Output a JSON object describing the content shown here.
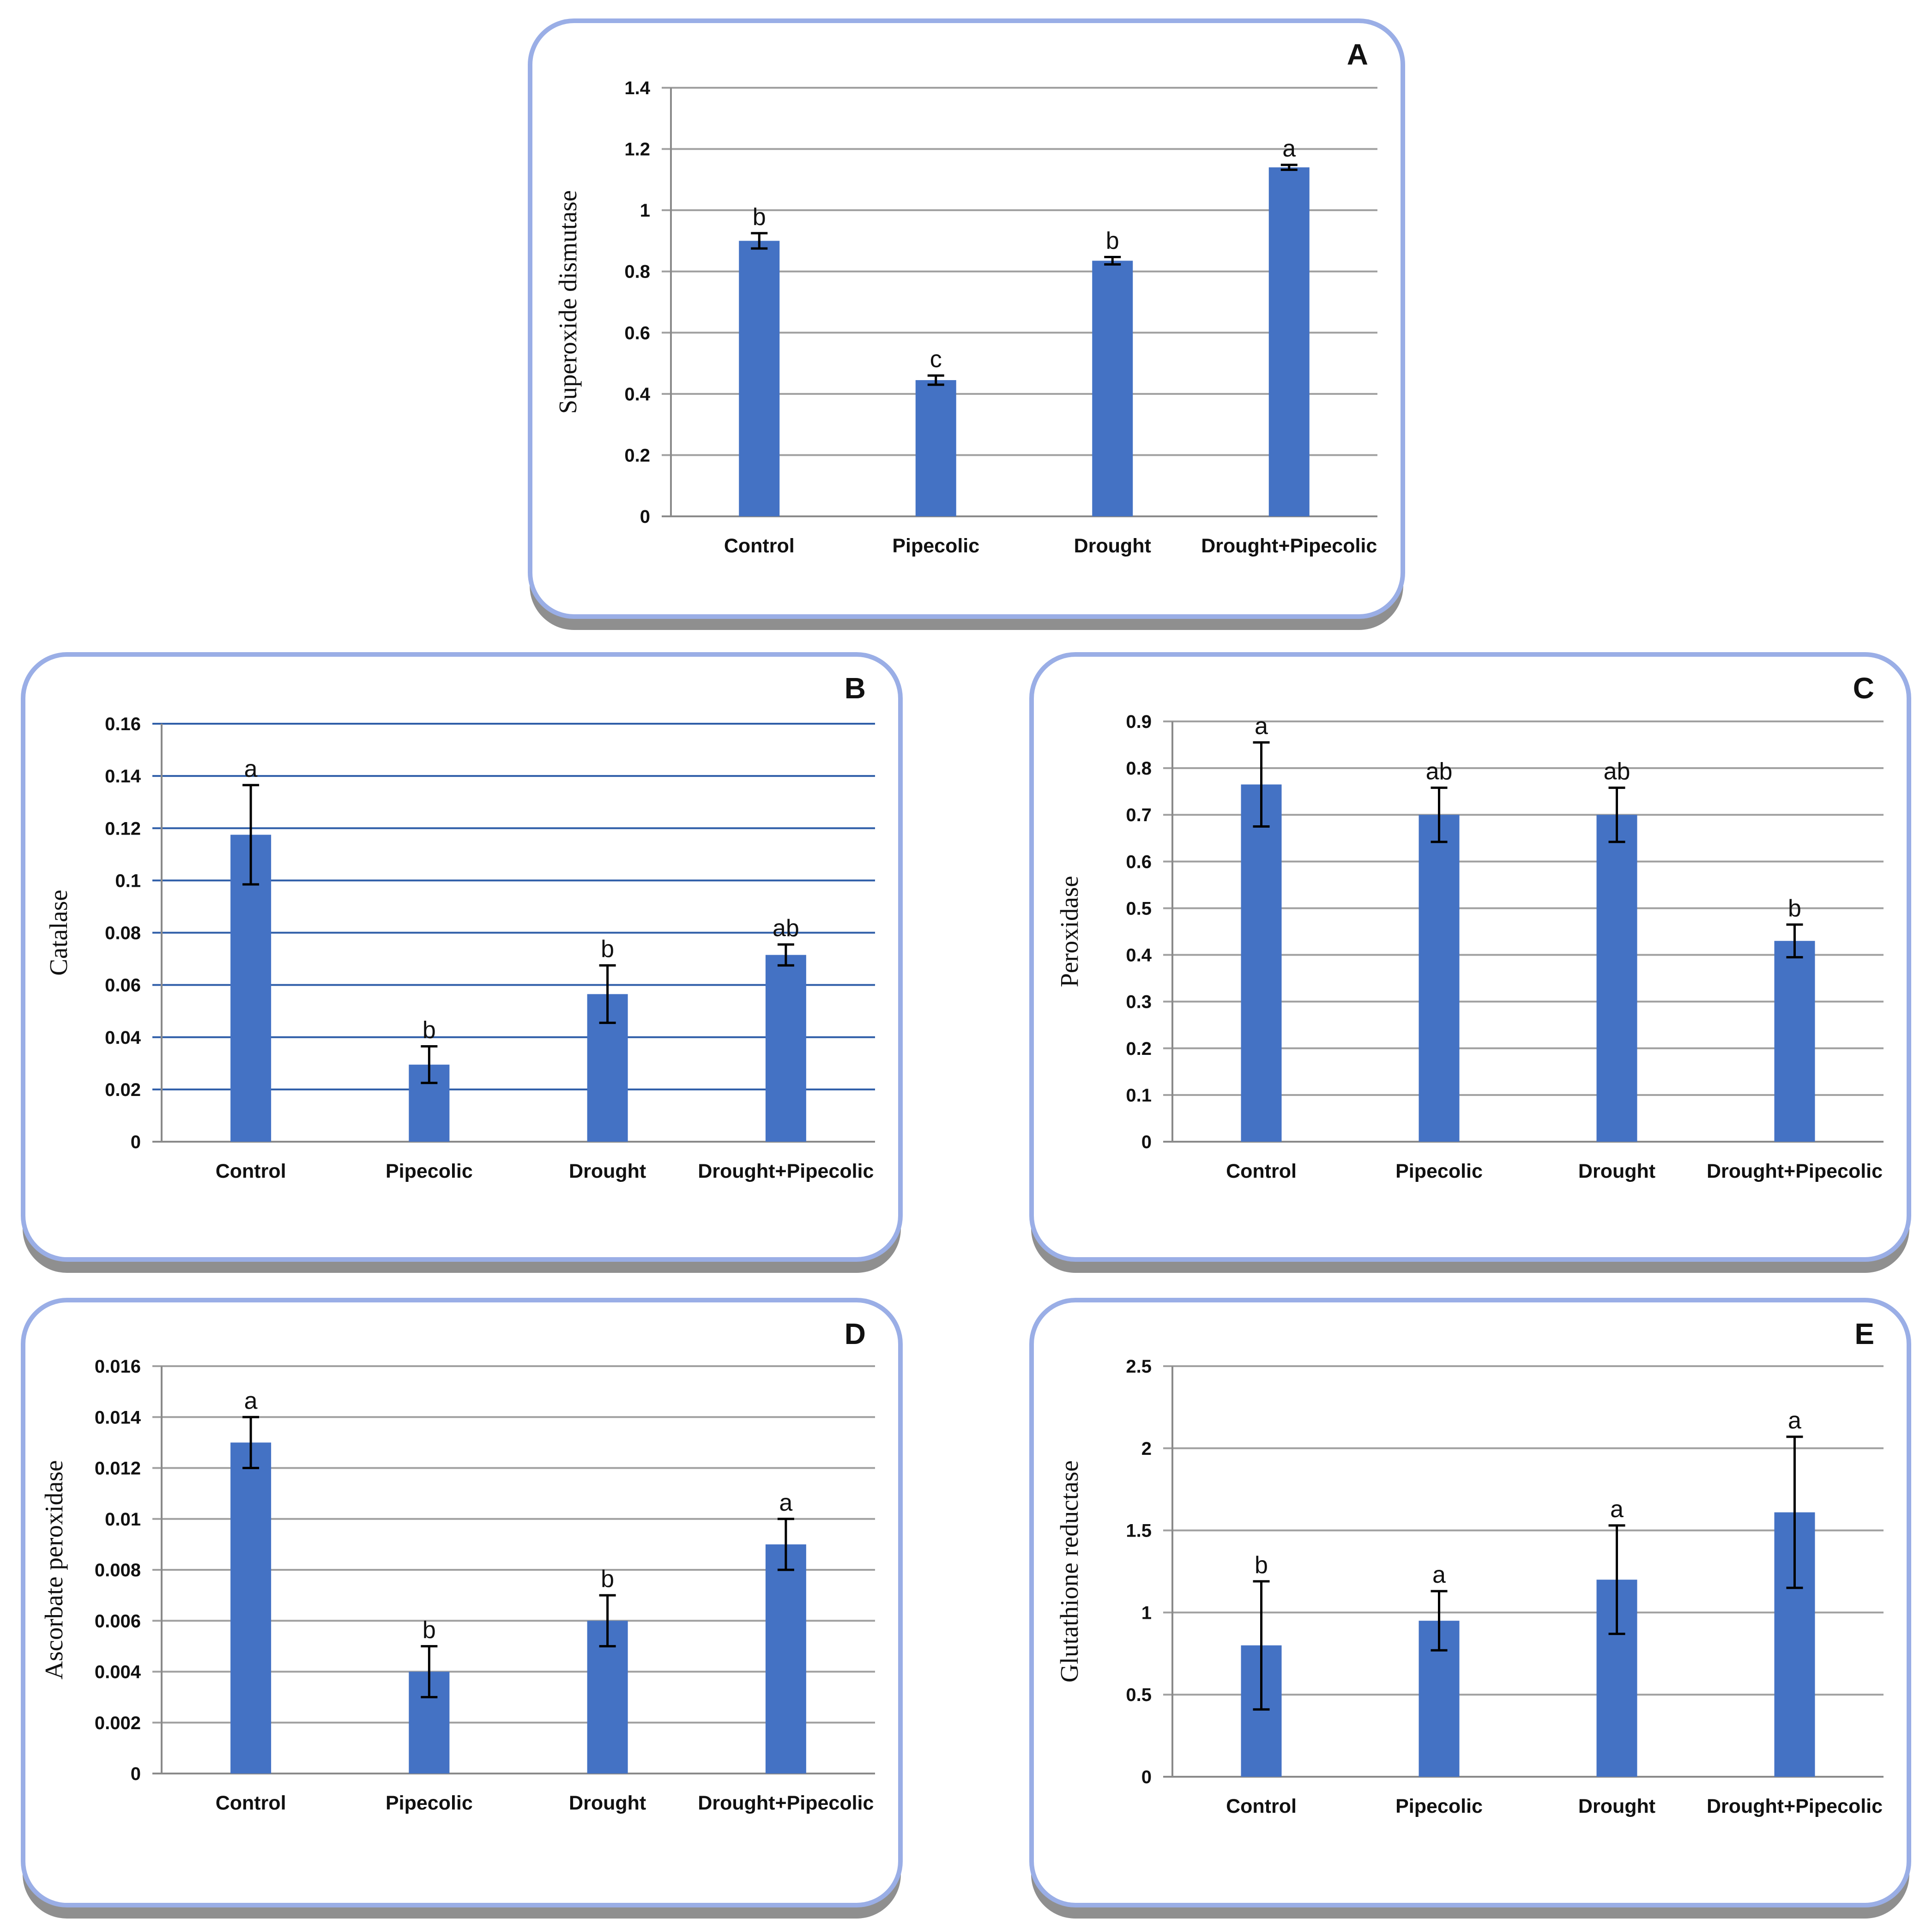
{
  "chart_data": [
    {
      "panel": "A",
      "type": "bar",
      "categories": [
        "Control",
        "Pipecolic",
        "Drought",
        "Drought+Pipecolic"
      ],
      "values": [
        0.9,
        0.445,
        0.835,
        1.14
      ],
      "errors": [
        0.025,
        0.015,
        0.012,
        0.008
      ],
      "significance": [
        "b",
        "c",
        "b",
        "a"
      ],
      "ylabel": "Superoxide dismutase",
      "ylim": [
        0,
        1.4
      ],
      "yticks": [
        "0",
        "0.2",
        "0.4",
        "0.6",
        "0.8",
        "1",
        "1.2",
        "1.4"
      ],
      "grid": true,
      "grid_color": "#a0a0a0",
      "bar_color": "#4472c4"
    },
    {
      "panel": "B",
      "type": "bar",
      "categories": [
        "Control",
        "Pipecolic",
        "Drought",
        "Drought+Pipecolic"
      ],
      "values": [
        0.1175,
        0.0295,
        0.0565,
        0.0715
      ],
      "errors": [
        0.019,
        0.007,
        0.011,
        0.004
      ],
      "significance": [
        "a",
        "b",
        "b",
        "ab"
      ],
      "ylabel": "Catalase",
      "ylim": [
        0,
        0.16
      ],
      "yticks": [
        "0",
        "0.02",
        "0.04",
        "0.06",
        "0.08",
        "0.1",
        "0.12",
        "0.14",
        "0.16"
      ],
      "grid": true,
      "grid_color": "#2f5ea8",
      "bar_color": "#4472c4"
    },
    {
      "panel": "C",
      "type": "bar",
      "categories": [
        "Control",
        "Pipecolic",
        "Drought",
        "Drought+Pipecolic"
      ],
      "values": [
        0.765,
        0.7,
        0.7,
        0.43
      ],
      "errors": [
        0.09,
        0.058,
        0.058,
        0.035
      ],
      "significance": [
        "a",
        "ab",
        "ab",
        "b"
      ],
      "ylabel": "Peroxidase",
      "ylim": [
        0,
        0.9
      ],
      "yticks": [
        "0",
        "0.1",
        "0.2",
        "0.3",
        "0.4",
        "0.5",
        "0.6",
        "0.7",
        "0.8",
        "0.9"
      ],
      "grid": true,
      "grid_color": "#a0a0a0",
      "bar_color": "#4472c4"
    },
    {
      "panel": "D",
      "type": "bar",
      "categories": [
        "Control",
        "Pipecolic",
        "Drought",
        "Drought+Pipecolic"
      ],
      "values": [
        0.013,
        0.004,
        0.006,
        0.009
      ],
      "errors": [
        0.001,
        0.001,
        0.001,
        0.001
      ],
      "significance": [
        "a",
        "b",
        "b",
        "a"
      ],
      "ylabel": "Ascorbate peroxidase",
      "ylim": [
        0,
        0.016
      ],
      "yticks": [
        "0",
        "0.002",
        "0.004",
        "0.006",
        "0.008",
        "0.01",
        "0.012",
        "0.014",
        "0.016"
      ],
      "grid": true,
      "grid_color": "#a0a0a0",
      "bar_color": "#4472c4"
    },
    {
      "panel": "E",
      "type": "bar",
      "categories": [
        "Control",
        "Pipecolic",
        "Drought",
        "Drought+Pipecolic"
      ],
      "values": [
        0.8,
        0.95,
        1.2,
        1.61
      ],
      "errors": [
        0.39,
        0.18,
        0.33,
        0.46
      ],
      "significance": [
        "b",
        "a",
        "a",
        "a"
      ],
      "ylabel": "Glutathione reductase",
      "ylim": [
        0,
        2.5
      ],
      "yticks": [
        "0",
        "0.5",
        "1",
        "1.5",
        "2",
        "2.5"
      ],
      "grid": true,
      "grid_color": "#a0a0a0",
      "bar_color": "#4472c4"
    }
  ]
}
